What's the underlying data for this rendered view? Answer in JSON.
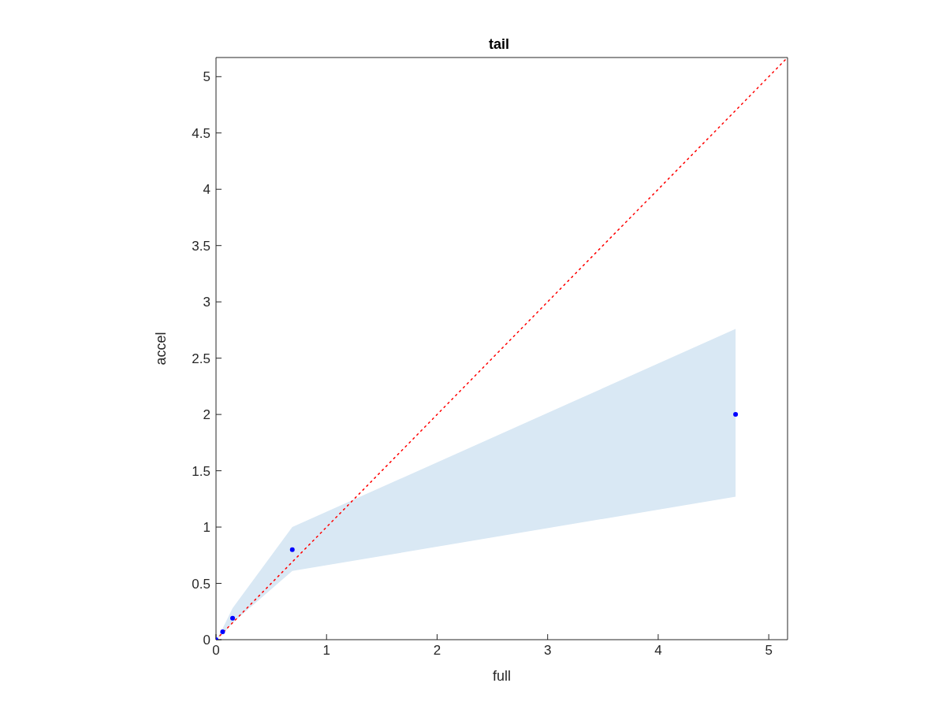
{
  "chart_data": {
    "type": "scatter",
    "title": "tail",
    "xlabel": "full",
    "ylabel": "accel",
    "xlim": [
      0,
      5.17
    ],
    "ylim": [
      0,
      5.17
    ],
    "xticks": [
      0,
      1,
      2,
      3,
      4,
      5
    ],
    "yticks": [
      0,
      0.5,
      1,
      1.5,
      2,
      2.5,
      3,
      3.5,
      4,
      4.5,
      5
    ],
    "grid": false,
    "legend": false,
    "marker": "circle",
    "series": [
      {
        "color": "#0000ff",
        "x": [
          0,
          0.06,
          0.15,
          0.69,
          4.7
        ],
        "values": [
          0,
          0.07,
          0.19,
          0.8,
          2.0
        ],
        "lower": [
          0,
          0.05,
          0.15,
          0.61,
          1.27
        ],
        "upper": [
          0,
          0.1,
          0.28,
          1.0,
          2.76
        ]
      },
      {
        "type": "line",
        "color": "#ff0000",
        "line_style": "dotted",
        "marker": "none",
        "x": [
          0,
          5.17
        ],
        "values": [
          0,
          5.17
        ]
      }
    ]
  }
}
